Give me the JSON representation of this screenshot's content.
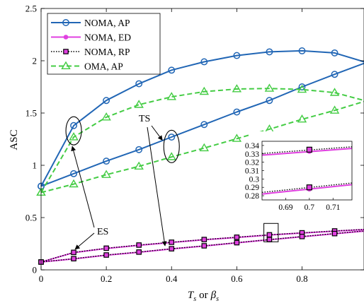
{
  "chart_data": {
    "type": "line",
    "xlabel_main": "T",
    "xlabel_main_sub": "s",
    "xlabel_or": "or",
    "xlabel_alt": "β",
    "xlabel_alt_sub": "s",
    "ylabel": "ASC",
    "xlim": [
      0,
      0.99
    ],
    "ylim": [
      0,
      2.5
    ],
    "xticks": [
      "0",
      "0.2",
      "0.4",
      "0.6",
      "0.8"
    ],
    "yticks": [
      "0",
      "0.5",
      "1",
      "1.5",
      "2",
      "2.5"
    ],
    "grid": false,
    "legend_position": "top-left",
    "legend": [
      "NOMA, AP",
      "NOMA, ED",
      "NOMA, RP",
      "OMA, AP"
    ],
    "colors": {
      "noma_ap": "#2166b5",
      "noma_ed": "#e040e0",
      "noma_rp": "#000000",
      "oma_ap": "#44cc44"
    },
    "series": [
      {
        "name": "NOMA, AP",
        "group": "ES",
        "style": "solid-circle",
        "x": [
          0,
          0.1,
          0.2,
          0.3,
          0.4,
          0.5,
          0.6,
          0.7,
          0.8,
          0.9,
          0.99
        ],
        "y": [
          0.8,
          1.38,
          1.62,
          1.78,
          1.91,
          1.99,
          2.05,
          2.085,
          2.095,
          2.075,
          1.99
        ]
      },
      {
        "name": "NOMA, AP",
        "group": "TS",
        "style": "solid-circle",
        "x": [
          0,
          0.1,
          0.2,
          0.3,
          0.4,
          0.5,
          0.6,
          0.7,
          0.8,
          0.9,
          0.99
        ],
        "y": [
          0.8,
          0.92,
          1.04,
          1.15,
          1.27,
          1.39,
          1.51,
          1.62,
          1.75,
          1.87,
          1.975
        ]
      },
      {
        "name": "OMA, AP",
        "group": "ES",
        "style": "dashed-triangle",
        "x": [
          0,
          0.1,
          0.2,
          0.3,
          0.4,
          0.5,
          0.6,
          0.7,
          0.8,
          0.9,
          0.99
        ],
        "y": [
          0.74,
          1.27,
          1.46,
          1.58,
          1.655,
          1.705,
          1.73,
          1.735,
          1.725,
          1.695,
          1.62
        ]
      },
      {
        "name": "OMA, AP",
        "group": "TS",
        "style": "dashed-triangle",
        "x": [
          0,
          0.1,
          0.2,
          0.3,
          0.4,
          0.5,
          0.6,
          0.7,
          0.8,
          0.9,
          0.99
        ],
        "y": [
          0.74,
          0.82,
          0.91,
          0.99,
          1.08,
          1.165,
          1.255,
          1.345,
          1.44,
          1.525,
          1.61
        ]
      },
      {
        "name": "NOMA, ED",
        "group": "ES",
        "style": "solid-dot",
        "x": [
          0,
          0.1,
          0.2,
          0.3,
          0.4,
          0.5,
          0.6,
          0.7,
          0.8,
          0.9,
          0.99
        ],
        "y": [
          0.075,
          0.165,
          0.205,
          0.235,
          0.262,
          0.288,
          0.31,
          0.333,
          0.352,
          0.37,
          0.385
        ]
      },
      {
        "name": "NOMA, ED",
        "group": "TS",
        "style": "solid-dot",
        "x": [
          0,
          0.1,
          0.2,
          0.3,
          0.4,
          0.5,
          0.6,
          0.7,
          0.8,
          0.9,
          0.99
        ],
        "y": [
          0.075,
          0.105,
          0.14,
          0.168,
          0.2,
          0.228,
          0.258,
          0.288,
          0.317,
          0.345,
          0.37
        ]
      },
      {
        "name": "NOMA, RP",
        "group": "ES",
        "style": "dotted-square",
        "x": [
          0,
          0.1,
          0.2,
          0.3,
          0.4,
          0.5,
          0.6,
          0.7,
          0.8,
          0.9,
          0.99
        ],
        "y": [
          0.075,
          0.167,
          0.207,
          0.237,
          0.264,
          0.29,
          0.312,
          0.335,
          0.354,
          0.372,
          0.387
        ]
      },
      {
        "name": "NOMA, RP",
        "group": "TS",
        "style": "dotted-square",
        "x": [
          0,
          0.1,
          0.2,
          0.3,
          0.4,
          0.5,
          0.6,
          0.7,
          0.8,
          0.9,
          0.99
        ],
        "y": [
          0.075,
          0.107,
          0.142,
          0.17,
          0.202,
          0.23,
          0.26,
          0.29,
          0.319,
          0.347,
          0.372
        ]
      }
    ],
    "annotations": {
      "es_label": "ES",
      "ts_label": "TS"
    },
    "inset": {
      "xlim": [
        0.68,
        0.718
      ],
      "ylim": [
        0.275,
        0.345
      ],
      "xticks": [
        "0.69",
        "0.7",
        "0.71"
      ],
      "yticks": [
        "0.28",
        "0.29",
        "0.3",
        "0.31",
        "0.32",
        "0.33",
        "0.34"
      ]
    }
  }
}
